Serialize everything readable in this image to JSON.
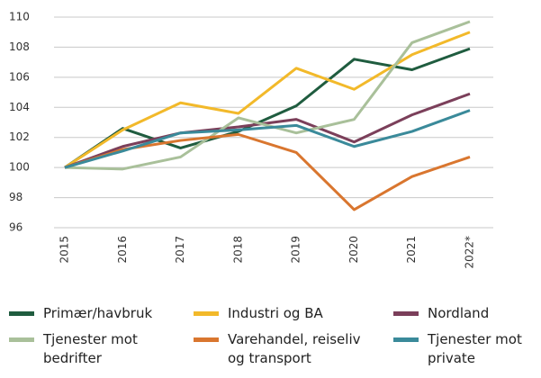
{
  "chart_data": {
    "type": "line",
    "categories": [
      "2015",
      "2016",
      "2017",
      "2018",
      "2019",
      "2020",
      "2021",
      "2022*"
    ],
    "series": [
      {
        "name": "Primær/havbruk",
        "color": "#1f5c3f",
        "values": [
          100,
          102.6,
          101.3,
          102.4,
          104.1,
          107.2,
          106.5,
          107.9
        ]
      },
      {
        "name": "Industri og BA",
        "color": "#f2b92a",
        "values": [
          100,
          102.5,
          104.3,
          103.6,
          106.6,
          105.2,
          107.5,
          109.0
        ]
      },
      {
        "name": "Nordland",
        "color": "#7b3f5a",
        "values": [
          100,
          101.4,
          102.3,
          102.7,
          103.2,
          101.7,
          103.5,
          104.9
        ]
      },
      {
        "name": "Tjenester mot bedrifter",
        "color": "#a9c09a",
        "values": [
          100,
          99.9,
          100.7,
          103.3,
          102.3,
          103.2,
          108.3,
          109.7
        ]
      },
      {
        "name": "Varehandel, reiseliv og transport",
        "color": "#d9762f",
        "values": [
          100,
          101.2,
          101.8,
          102.2,
          101.0,
          97.2,
          99.4,
          100.7
        ]
      },
      {
        "name": "Tjenester mot private",
        "color": "#3a8a9a",
        "values": [
          100,
          101.1,
          102.3,
          102.5,
          102.8,
          101.4,
          102.4,
          103.8
        ]
      }
    ],
    "ylim": [
      96,
      110
    ],
    "yticks": [
      96,
      98,
      100,
      102,
      104,
      106,
      108,
      110
    ],
    "grid": true
  }
}
